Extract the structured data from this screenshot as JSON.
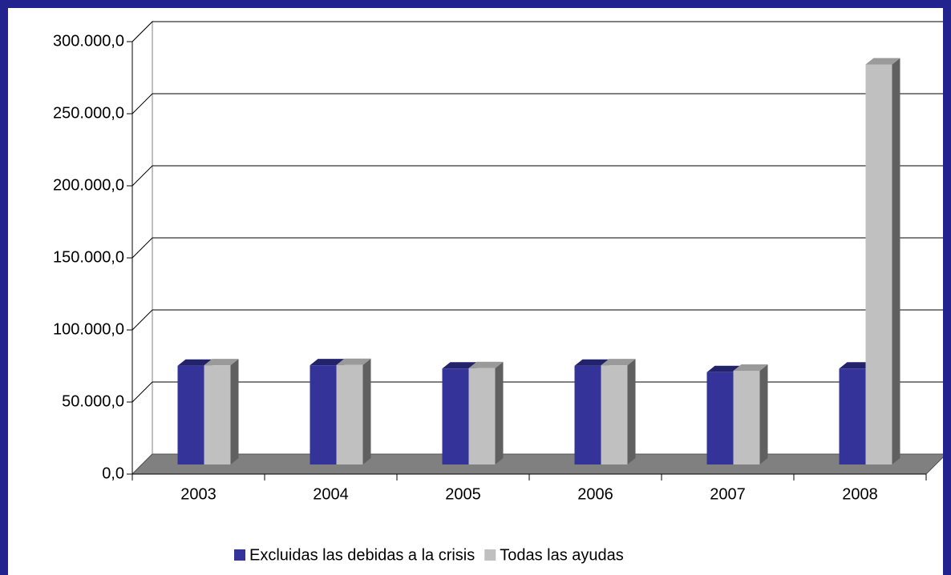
{
  "chart_data": {
    "type": "bar3d",
    "categories": [
      "2003",
      "2004",
      "2005",
      "2006",
      "2007",
      "2008"
    ],
    "series": [
      {
        "name": "Excluidas las debidas a la crisis",
        "color": "#333399",
        "values": [
          68500,
          68800,
          66500,
          68500,
          64000,
          66500
        ]
      },
      {
        "name": "Todas las ayudas",
        "color": "#c0c0c0",
        "values": [
          68800,
          69000,
          66800,
          68800,
          65000,
          277500
        ]
      }
    ],
    "ylim": [
      0,
      300000
    ],
    "yticks": [
      {
        "value": 0,
        "label": "0,0"
      },
      {
        "value": 50000,
        "label": "50.000,0"
      },
      {
        "value": 100000,
        "label": "100.000,0"
      },
      {
        "value": 150000,
        "label": "150.000,0"
      },
      {
        "value": 200000,
        "label": "200.000,0"
      },
      {
        "value": 250000,
        "label": "250.000,0"
      },
      {
        "value": 300000,
        "label": "300.000,0"
      }
    ],
    "grid": true
  }
}
